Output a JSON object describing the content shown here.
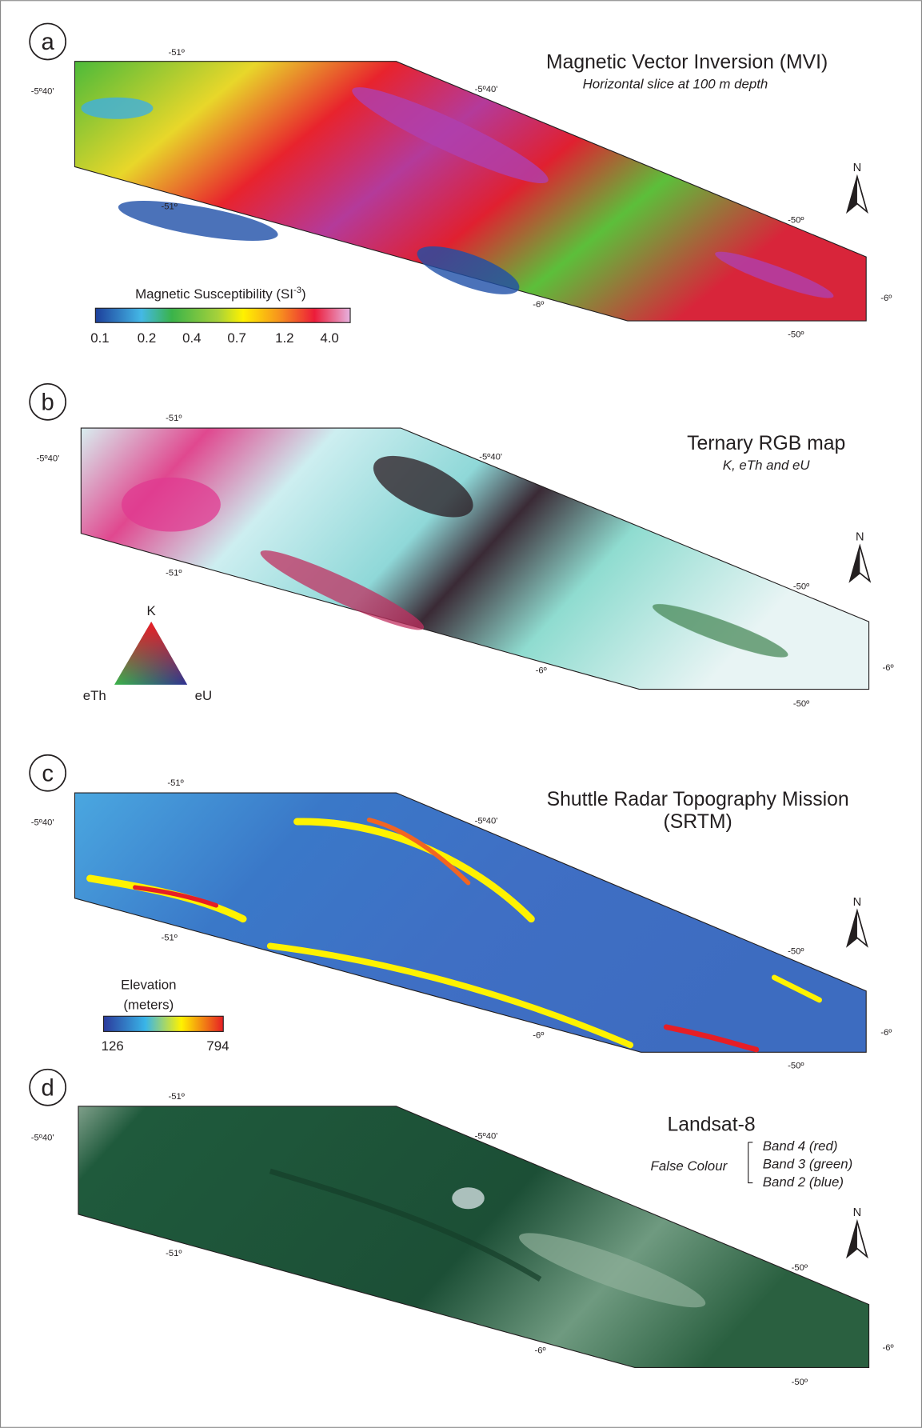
{
  "panels": [
    {
      "letter": "a",
      "title": "Magnetic Vector Inversion (MVI)",
      "subtitle": "Horizontal slice at 100 m depth",
      "coordinates": [
        "-51º",
        "-5º40'",
        "-5º40'",
        "-51º",
        "-50º",
        "-6º",
        "-6º",
        "-50º"
      ],
      "north": "N",
      "legend": {
        "title": [
          "Magnetic Susceptibility (SI",
          "-3",
          ")"
        ],
        "labels": [
          "0.1",
          "0.2",
          "0.4",
          "0.7",
          "1.2",
          "4.0"
        ]
      }
    },
    {
      "letter": "b",
      "title": "Ternary RGB map",
      "subtitle": "K, eTh and eU",
      "coordinates": [
        "-51º",
        "-5º40'",
        "-5º40'",
        "-51º",
        "-50º",
        "-6º",
        "-6º",
        "-50º"
      ],
      "north": "N",
      "legend": {
        "labels": [
          "K",
          "eTh",
          "eU"
        ]
      }
    },
    {
      "letter": "c",
      "title": "Shuttle Radar Topography Mission",
      "subtitle": "(SRTM)",
      "coordinates": [
        "-51º",
        "-5º40'",
        "-5º40'",
        "-51º",
        "-50º",
        "-6º",
        "-6º",
        "-50º"
      ],
      "north": "N",
      "legend": {
        "title": [
          "Elevation",
          "(meters)"
        ],
        "labels": [
          "126",
          "794"
        ]
      }
    },
    {
      "letter": "d",
      "title": "Landsat-8",
      "subtitle": "False Colour",
      "coordinates": [
        "-51º",
        "-5º40'",
        "-5º40'",
        "-51º",
        "-50º",
        "-6º",
        "-6º",
        "-50º"
      ],
      "north": "N",
      "legend": {
        "labels": [
          "Band 4 (red)",
          "Band 3 (green)",
          "Band 2 (blue)"
        ]
      }
    }
  ]
}
